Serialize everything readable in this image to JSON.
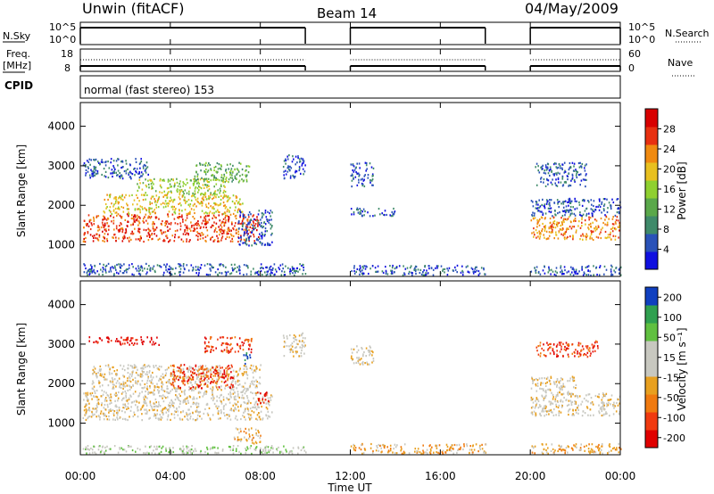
{
  "header": {
    "station": "Unwin (fitACF)",
    "beam": "Beam 14",
    "date": "04/May/2009"
  },
  "colors": {
    "power": [
      "#1010e0",
      "#2a52b8",
      "#3f8a6a",
      "#5aa84a",
      "#8fd030",
      "#e8c020",
      "#f08a10",
      "#e83010",
      "#d80000"
    ],
    "velocity": [
      "#e00000",
      "#f03a10",
      "#f07a10",
      "#e8a020",
      "#c8c8c0",
      "#c8c8c0",
      "#60c040",
      "#30a050",
      "#1040c0"
    ]
  },
  "chart_data": [
    {
      "type": "line",
      "name": "nsky-nsearch",
      "left_label": "N.Sky",
      "right_label": "N.Search",
      "left_ticks": [
        "10^5",
        "10^0"
      ],
      "right_ticks": [
        "10^5",
        "10^0"
      ],
      "xlim": [
        0,
        24
      ],
      "on_intervals": [
        [
          0,
          10
        ],
        [
          12,
          18
        ],
        [
          20,
          24
        ]
      ]
    },
    {
      "type": "line",
      "name": "freq-nave",
      "left_label_line1": "Freq.",
      "left_label_line2": "[MHz]",
      "right_label": "Nave",
      "left_ticks": [
        18,
        8
      ],
      "right_ticks": [
        60,
        0
      ],
      "xlim": [
        0,
        24
      ],
      "on_intervals": [
        [
          0,
          10
        ],
        [
          12,
          18
        ],
        [
          20,
          24
        ]
      ]
    },
    {
      "type": "table",
      "name": "cpid",
      "label": "CPID",
      "text": "normal (fast stereo) 153"
    },
    {
      "type": "heatmap",
      "name": "power",
      "ylabel": "Slant Range [km]",
      "yticks": [
        1000,
        2000,
        3000,
        4000
      ],
      "ylim": [
        200,
        4600
      ],
      "xlim": [
        0,
        24
      ],
      "colorbar_label": "Power [dB]",
      "colorbar_ticks": [
        4,
        8,
        12,
        16,
        20,
        24,
        28
      ],
      "colorbar_range": [
        0,
        32
      ],
      "bands": [
        {
          "t": [
            0.1,
            7.9
          ],
          "r": [
            1100,
            1800
          ],
          "level": 7
        },
        {
          "t": [
            1.0,
            7.2
          ],
          "r": [
            1800,
            2300
          ],
          "level": 5
        },
        {
          "t": [
            2.5,
            6.5
          ],
          "r": [
            2300,
            2700
          ],
          "level": 4
        },
        {
          "t": [
            0.1,
            3.0
          ],
          "r": [
            2700,
            3200
          ],
          "level": 1
        },
        {
          "t": [
            5.0,
            7.5
          ],
          "r": [
            2600,
            3100
          ],
          "level": 3
        },
        {
          "t": [
            7.0,
            8.5
          ],
          "r": [
            1000,
            1900
          ],
          "level": 1
        },
        {
          "t": [
            9.0,
            10.0
          ],
          "r": [
            2700,
            3300
          ],
          "level": 1
        },
        {
          "t": [
            0.1,
            10.0
          ],
          "r": [
            250,
            550
          ],
          "level": 1
        },
        {
          "t": [
            12.0,
            13.0
          ],
          "r": [
            2500,
            3100
          ],
          "level": 1
        },
        {
          "t": [
            12.0,
            18.0
          ],
          "r": [
            250,
            500
          ],
          "level": 1
        },
        {
          "t": [
            12.0,
            14.0
          ],
          "r": [
            1750,
            1950
          ],
          "level": 1
        },
        {
          "t": [
            20.0,
            24.0
          ],
          "r": [
            1150,
            1750
          ],
          "level": 6
        },
        {
          "t": [
            20.0,
            24.0
          ],
          "r": [
            1750,
            2200
          ],
          "level": 1
        },
        {
          "t": [
            20.2,
            22.5
          ],
          "r": [
            2500,
            3100
          ],
          "level": 1
        },
        {
          "t": [
            20.0,
            24.0
          ],
          "r": [
            250,
            500
          ],
          "level": 1
        }
      ]
    },
    {
      "type": "heatmap",
      "name": "velocity",
      "ylabel": "Slant Range [km]",
      "yticks": [
        1000,
        2000,
        3000,
        4000
      ],
      "ylim": [
        200,
        4600
      ],
      "xlim": [
        0,
        24
      ],
      "xticks": [
        "00:00",
        "04:00",
        "08:00",
        "12:00",
        "16:00",
        "20:00",
        "00:00"
      ],
      "xlabel": "Time UT",
      "colorbar_label": "Velocity [m s⁻¹]",
      "colorbar_ticks": [
        -200,
        -100,
        -50,
        -15,
        15,
        50,
        100,
        200
      ],
      "bands": [
        {
          "t": [
            0.1,
            8.5
          ],
          "r": [
            1100,
            1800
          ],
          "level": 4
        },
        {
          "t": [
            0.5,
            8.0
          ],
          "r": [
            1800,
            2500
          ],
          "level": 4
        },
        {
          "t": [
            4.0,
            6.8
          ],
          "r": [
            1900,
            2500
          ],
          "level": 1
        },
        {
          "t": [
            0.3,
            3.5
          ],
          "r": [
            3000,
            3200
          ],
          "level": 0
        },
        {
          "t": [
            5.5,
            7.6
          ],
          "r": [
            2800,
            3200
          ],
          "level": 1
        },
        {
          "t": [
            7.2,
            7.6
          ],
          "r": [
            2500,
            2800
          ],
          "level": 8
        },
        {
          "t": [
            7.8,
            8.4
          ],
          "r": [
            1500,
            1800
          ],
          "level": 0
        },
        {
          "t": [
            6.8,
            8.0
          ],
          "r": [
            500,
            900
          ],
          "level": 3
        },
        {
          "t": [
            9.0,
            10.0
          ],
          "r": [
            2700,
            3300
          ],
          "level": 4
        },
        {
          "t": [
            0.1,
            10.0
          ],
          "r": [
            250,
            450
          ],
          "level": 5
        },
        {
          "t": [
            12.0,
            13.0
          ],
          "r": [
            2500,
            3000
          ],
          "level": 4
        },
        {
          "t": [
            12.0,
            18.0
          ],
          "r": [
            250,
            500
          ],
          "level": 3
        },
        {
          "t": [
            20.0,
            24.0
          ],
          "r": [
            1200,
            1800
          ],
          "level": 4
        },
        {
          "t": [
            20.0,
            22.0
          ],
          "r": [
            1800,
            2200
          ],
          "level": 4
        },
        {
          "t": [
            20.2,
            23.0
          ],
          "r": [
            2700,
            3100
          ],
          "level": 1
        },
        {
          "t": [
            20.0,
            24.0
          ],
          "r": [
            250,
            500
          ],
          "level": 3
        }
      ]
    }
  ]
}
